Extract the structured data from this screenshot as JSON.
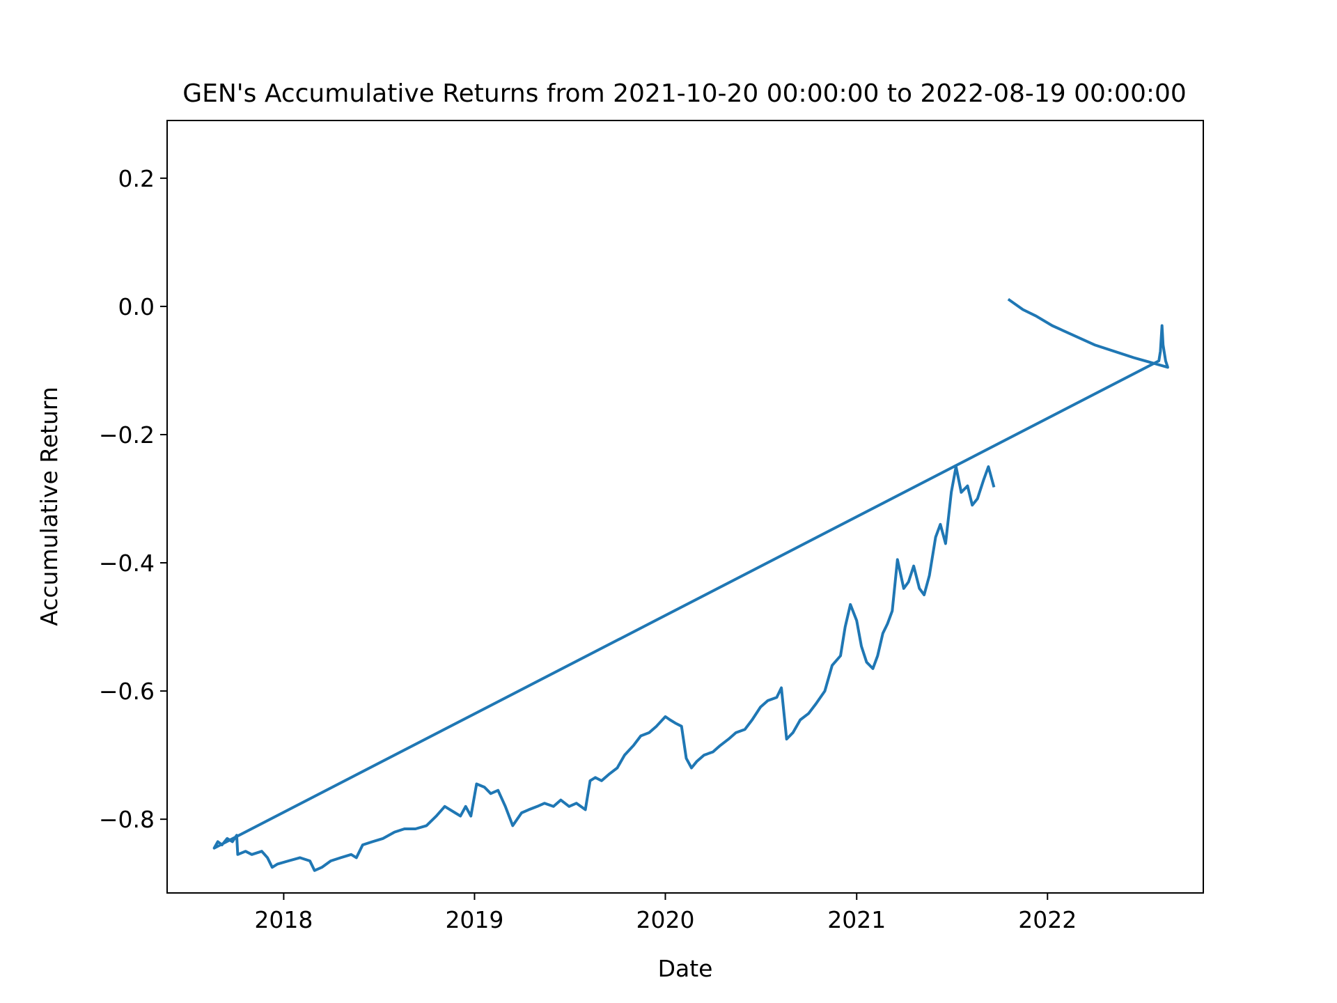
{
  "chart_data": {
    "type": "line",
    "title": "GEN's Accumulative Returns from 2021-10-20 00:00:00 to 2022-08-19 00:00:00",
    "xlabel": "Date",
    "ylabel": "Accumulative Return",
    "xlim": [
      "2017-05-23",
      "2022-10-26"
    ],
    "ylim": [
      -0.915,
      0.29
    ],
    "x_ticks": [
      {
        "date": "2018-01-01",
        "label": "2018"
      },
      {
        "date": "2019-01-01",
        "label": "2019"
      },
      {
        "date": "2020-01-01",
        "label": "2020"
      },
      {
        "date": "2021-01-01",
        "label": "2021"
      },
      {
        "date": "2022-01-01",
        "label": "2022"
      }
    ],
    "y_ticks": [
      {
        "value": 0.2,
        "label": "0.2"
      },
      {
        "value": 0.0,
        "label": "0.0"
      },
      {
        "value": -0.2,
        "label": "−0.2"
      },
      {
        "value": -0.4,
        "label": "−0.4"
      },
      {
        "value": -0.6,
        "label": "−0.6"
      },
      {
        "value": -0.8,
        "label": "−0.8"
      }
    ],
    "grid": false,
    "series": [
      {
        "name": "",
        "color": "#1f77b4",
        "points": [
          [
            "2021-10-20",
            0.01
          ],
          [
            "2021-11-15",
            -0.005
          ],
          [
            "2021-12-10",
            -0.015
          ],
          [
            "2022-01-10",
            -0.03
          ],
          [
            "2022-04-01",
            -0.06
          ],
          [
            "2022-06-15",
            -0.08
          ],
          [
            "2022-08-19",
            -0.095
          ],
          [
            "2022-08-15",
            -0.085
          ],
          [
            "2022-08-10",
            -0.06
          ],
          [
            "2022-08-08",
            -0.03
          ],
          [
            "2022-08-05",
            -0.07
          ],
          [
            "2022-08-02",
            -0.085
          ],
          [
            "2017-08-21",
            -0.845
          ],
          [
            "2017-08-28",
            -0.835
          ],
          [
            "2017-09-05",
            -0.84
          ],
          [
            "2017-09-15",
            -0.83
          ],
          [
            "2017-09-25",
            -0.835
          ],
          [
            "2017-10-03",
            -0.825
          ],
          [
            "2017-10-05",
            -0.855
          ],
          [
            "2017-10-20",
            -0.85
          ],
          [
            "2017-11-01",
            -0.855
          ],
          [
            "2017-11-20",
            -0.85
          ],
          [
            "2017-12-01",
            -0.86
          ],
          [
            "2017-12-10",
            -0.875
          ],
          [
            "2017-12-20",
            -0.87
          ],
          [
            "2018-01-10",
            -0.865
          ],
          [
            "2018-02-01",
            -0.86
          ],
          [
            "2018-02-20",
            -0.865
          ],
          [
            "2018-03-01",
            -0.88
          ],
          [
            "2018-03-15",
            -0.875
          ],
          [
            "2018-04-01",
            -0.865
          ],
          [
            "2018-04-20",
            -0.86
          ],
          [
            "2018-05-10",
            -0.855
          ],
          [
            "2018-05-20",
            -0.86
          ],
          [
            "2018-06-01",
            -0.84
          ],
          [
            "2018-06-20",
            -0.835
          ],
          [
            "2018-07-10",
            -0.83
          ],
          [
            "2018-08-01",
            -0.82
          ],
          [
            "2018-08-20",
            -0.815
          ],
          [
            "2018-09-10",
            -0.815
          ],
          [
            "2018-10-01",
            -0.81
          ],
          [
            "2018-10-20",
            -0.795
          ],
          [
            "2018-11-05",
            -0.78
          ],
          [
            "2018-11-15",
            -0.785
          ],
          [
            "2018-11-25",
            -0.79
          ],
          [
            "2018-12-05",
            -0.795
          ],
          [
            "2018-12-15",
            -0.78
          ],
          [
            "2018-12-25",
            -0.795
          ],
          [
            "2019-01-05",
            -0.745
          ],
          [
            "2019-01-20",
            -0.75
          ],
          [
            "2019-02-01",
            -0.76
          ],
          [
            "2019-02-15",
            -0.755
          ],
          [
            "2019-03-01",
            -0.78
          ],
          [
            "2019-03-15",
            -0.81
          ],
          [
            "2019-04-01",
            -0.79
          ],
          [
            "2019-04-15",
            -0.785
          ],
          [
            "2019-05-01",
            -0.78
          ],
          [
            "2019-05-15",
            -0.775
          ],
          [
            "2019-06-01",
            -0.78
          ],
          [
            "2019-06-15",
            -0.77
          ],
          [
            "2019-07-01",
            -0.78
          ],
          [
            "2019-07-15",
            -0.775
          ],
          [
            "2019-08-01",
            -0.785
          ],
          [
            "2019-08-10",
            -0.74
          ],
          [
            "2019-08-20",
            -0.735
          ],
          [
            "2019-09-01",
            -0.74
          ],
          [
            "2019-09-15",
            -0.73
          ],
          [
            "2019-10-01",
            -0.72
          ],
          [
            "2019-10-15",
            -0.7
          ],
          [
            "2019-11-01",
            -0.685
          ],
          [
            "2019-11-15",
            -0.67
          ],
          [
            "2019-12-01",
            -0.665
          ],
          [
            "2019-12-15",
            -0.655
          ],
          [
            "2020-01-01",
            -0.64
          ],
          [
            "2020-01-10",
            -0.645
          ],
          [
            "2020-01-20",
            -0.65
          ],
          [
            "2020-02-01",
            -0.655
          ],
          [
            "2020-02-10",
            -0.705
          ],
          [
            "2020-02-20",
            -0.72
          ],
          [
            "2020-03-01",
            -0.71
          ],
          [
            "2020-03-15",
            -0.7
          ],
          [
            "2020-04-01",
            -0.695
          ],
          [
            "2020-04-15",
            -0.685
          ],
          [
            "2020-05-01",
            -0.675
          ],
          [
            "2020-05-15",
            -0.665
          ],
          [
            "2020-06-01",
            -0.66
          ],
          [
            "2020-06-15",
            -0.645
          ],
          [
            "2020-07-01",
            -0.625
          ],
          [
            "2020-07-15",
            -0.615
          ],
          [
            "2020-08-01",
            -0.61
          ],
          [
            "2020-08-10",
            -0.595
          ],
          [
            "2020-08-20",
            -0.675
          ],
          [
            "2020-09-01",
            -0.665
          ],
          [
            "2020-09-15",
            -0.645
          ],
          [
            "2020-10-01",
            -0.635
          ],
          [
            "2020-10-15",
            -0.62
          ],
          [
            "2020-11-01",
            -0.6
          ],
          [
            "2020-11-15",
            -0.56
          ],
          [
            "2020-12-01",
            -0.545
          ],
          [
            "2020-12-10",
            -0.5
          ],
          [
            "2020-12-20",
            -0.465
          ],
          [
            "2021-01-01",
            -0.49
          ],
          [
            "2021-01-10",
            -0.53
          ],
          [
            "2021-01-20",
            -0.555
          ],
          [
            "2021-02-01",
            -0.565
          ],
          [
            "2021-02-10",
            -0.545
          ],
          [
            "2021-02-20",
            -0.51
          ],
          [
            "2021-03-01",
            -0.495
          ],
          [
            "2021-03-10",
            -0.475
          ],
          [
            "2021-03-20",
            -0.395
          ],
          [
            "2021-04-01",
            -0.44
          ],
          [
            "2021-04-10",
            -0.43
          ],
          [
            "2021-04-20",
            -0.405
          ],
          [
            "2021-05-01",
            -0.44
          ],
          [
            "2021-05-10",
            -0.45
          ],
          [
            "2021-05-20",
            -0.42
          ],
          [
            "2021-06-01",
            -0.36
          ],
          [
            "2021-06-10",
            -0.34
          ],
          [
            "2021-06-20",
            -0.37
          ],
          [
            "2021-07-01",
            -0.29
          ],
          [
            "2021-07-10",
            -0.25
          ],
          [
            "2021-07-20",
            -0.29
          ],
          [
            "2021-08-01",
            -0.28
          ],
          [
            "2021-08-10",
            -0.31
          ],
          [
            "2021-08-20",
            -0.3
          ],
          [
            "2021-09-01",
            -0.27
          ],
          [
            "2021-09-10",
            -0.25
          ],
          [
            "2021-09-20",
            -0.28
          ]
        ]
      }
    ]
  }
}
